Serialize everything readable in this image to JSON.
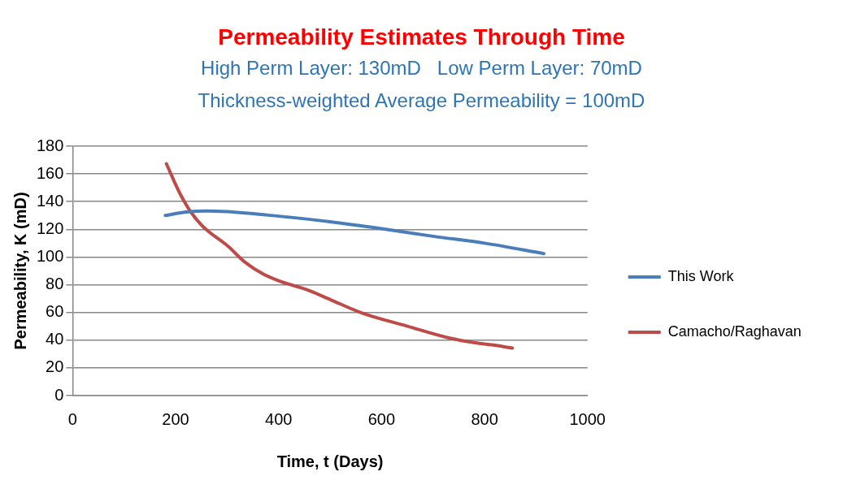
{
  "chart_data": {
    "type": "line",
    "title": "Permeability Estimates Through Time",
    "subtitle": "High Perm Layer: 130mD   Low Perm Layer: 70mD\nThickness-weighted Average Permeability = 100mD",
    "xlabel": "Time, t (Days)",
    "ylabel": "Permeability, K (mD)",
    "xlim": [
      0,
      1000
    ],
    "xticks": [
      0,
      200,
      400,
      600,
      800,
      1000
    ],
    "ylim": [
      0,
      180
    ],
    "yticks": [
      0,
      20,
      40,
      60,
      80,
      100,
      120,
      140,
      160,
      180
    ],
    "grid": "y",
    "legend": "right",
    "marker": "none",
    "line_style": "solid",
    "series": [
      {
        "name": "This Work",
        "color": "#4a7ebb",
        "x": [
          180,
          220,
          260,
          300,
          400,
          500,
          600,
          700,
          800,
          915
        ],
        "values": [
          130,
          132.5,
          133.3,
          132.8,
          129.5,
          125.5,
          120.5,
          115,
          110,
          102.5
        ]
      },
      {
        "name": "Camacho/Raghavan",
        "color": "#be4b48",
        "x": [
          182,
          209,
          229,
          252,
          302,
          335,
          369,
          402,
          455,
          502,
          562,
          649,
          729,
          782,
          815,
          854
        ],
        "values": [
          167.4,
          145.4,
          132.8,
          122.4,
          107.7,
          96.2,
          87.9,
          82.6,
          76.4,
          69,
          59.6,
          50.2,
          41.8,
          38.1,
          36.6,
          34.3
        ]
      }
    ]
  }
}
